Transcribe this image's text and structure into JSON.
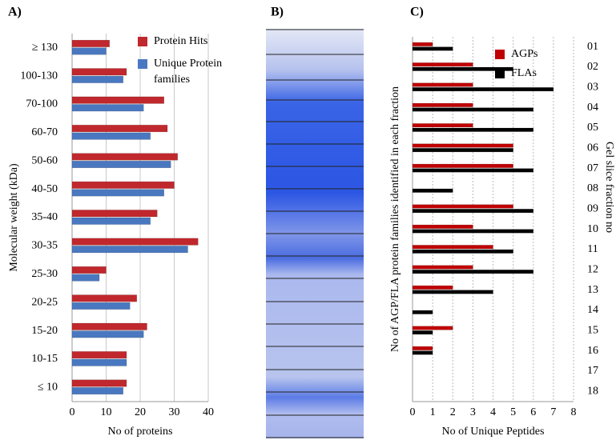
{
  "chart_data": [
    {
      "type": "bar",
      "orientation": "horizontal",
      "title": "A)",
      "xlabel": "No  of  proteins",
      "ylabel": "Molecular weight  (kDa)",
      "categories": [
        "≤ 10",
        "10-15",
        "15-20",
        "20-25",
        "25-30",
        "30-35",
        "35-40",
        "40-50",
        "50-60",
        "60-70",
        "70-100",
        "100-130",
        "≥ 130"
      ],
      "series": [
        {
          "name": "Protein Hits",
          "color": "#c0282d",
          "values": [
            16,
            16,
            22,
            19,
            10,
            37,
            25,
            30,
            31,
            28,
            27,
            16,
            11
          ]
        },
        {
          "name": "Unique Protein families",
          "color": "#4a78c0",
          "values": [
            15,
            16,
            21,
            17,
            8,
            34,
            23,
            27,
            29,
            23,
            21,
            15,
            10
          ]
        }
      ],
      "xlim": [
        0,
        40
      ],
      "xticks": [
        0,
        10,
        20,
        30,
        40
      ],
      "grid": true,
      "legend": "top-right"
    },
    {
      "type": "bar",
      "orientation": "horizontal",
      "title": "C)",
      "xlabel": "No of Unique Peptides",
      "ylabel": "No  of  AGP/FLA    protein families  identified in each fraction",
      "ylabel_right": "Gel  slice  fraction no",
      "categories": [
        "18",
        "17",
        "16",
        "15",
        "14",
        "13",
        "12",
        "11",
        "10",
        "09",
        "08",
        "07",
        "06",
        "05",
        "04",
        "03",
        "02",
        "01"
      ],
      "series": [
        {
          "name": "AGPs",
          "color": "#c00000",
          "values": [
            0,
            0,
            1,
            2,
            0,
            2,
            3,
            4,
            3,
            5,
            0,
            5,
            5,
            3,
            3,
            3,
            3,
            1
          ]
        },
        {
          "name": "FLAs",
          "color": "#000000",
          "values": [
            0,
            0,
            1,
            1,
            1,
            4,
            6,
            5,
            6,
            6,
            2,
            6,
            5,
            6,
            6,
            7,
            5,
            2
          ]
        }
      ],
      "xlim": [
        0,
        8
      ],
      "xticks": [
        0,
        1,
        2,
        3,
        4,
        5,
        6,
        7,
        8
      ],
      "grid": true,
      "legend": "top-right"
    }
  ],
  "gel": {
    "label": "B)"
  }
}
